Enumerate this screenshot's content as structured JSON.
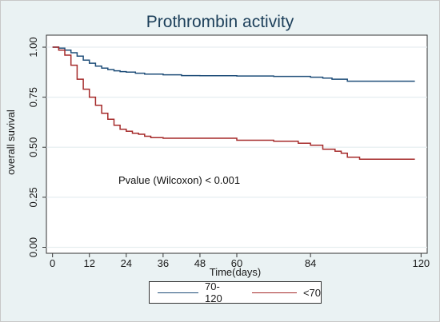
{
  "chart_data": {
    "type": "line",
    "title": "Prothrombin activity",
    "xlabel": "Time(days)",
    "ylabel": "overall suvival",
    "xlim": [
      -2,
      122
    ],
    "ylim": [
      -0.03,
      1.06
    ],
    "x_ticks": [
      0,
      12,
      24,
      36,
      48,
      60,
      84,
      120
    ],
    "y_ticks": [
      0.0,
      0.25,
      0.5,
      0.75,
      1.0
    ],
    "y_tick_labels": [
      "0.00",
      "0.25",
      "0.50",
      "0.75",
      "1.00"
    ],
    "grid": true,
    "legend_position": "bottom",
    "annotation": "Pvalue (Wilcoxon) < 0.001",
    "series": [
      {
        "name": "70-120",
        "color": "#1f4e79",
        "x": [
          0,
          2,
          4,
          6,
          8,
          10,
          12,
          14,
          16,
          18,
          20,
          22,
          24,
          27,
          30,
          36,
          42,
          48,
          60,
          72,
          84,
          88,
          91,
          96,
          100,
          110,
          118
        ],
        "y": [
          1.0,
          0.995,
          0.985,
          0.972,
          0.955,
          0.935,
          0.92,
          0.905,
          0.895,
          0.888,
          0.882,
          0.878,
          0.875,
          0.87,
          0.865,
          0.862,
          0.858,
          0.857,
          0.856,
          0.854,
          0.85,
          0.845,
          0.84,
          0.83,
          0.83,
          0.83,
          0.83
        ]
      },
      {
        "name": "<70",
        "color": "#a52a2a",
        "x": [
          0,
          2,
          4,
          6,
          8,
          10,
          12,
          14,
          16,
          18,
          20,
          22,
          24,
          26,
          28,
          30,
          32,
          36,
          48,
          60,
          72,
          80,
          84,
          88,
          92,
          94,
          96,
          100,
          110,
          118
        ],
        "y": [
          1.0,
          0.985,
          0.96,
          0.91,
          0.84,
          0.79,
          0.75,
          0.71,
          0.67,
          0.64,
          0.61,
          0.59,
          0.58,
          0.57,
          0.565,
          0.555,
          0.548,
          0.545,
          0.545,
          0.535,
          0.53,
          0.52,
          0.51,
          0.49,
          0.48,
          0.47,
          0.45,
          0.44,
          0.44,
          0.44
        ]
      }
    ]
  }
}
